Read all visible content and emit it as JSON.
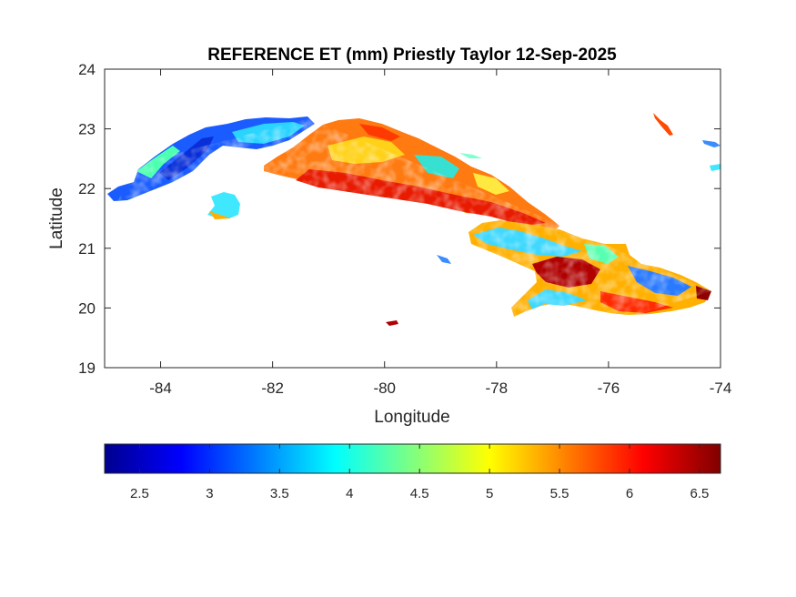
{
  "map": {
    "title": "REFERENCE ET (mm) Priestly Taylor 12-Sep-2025",
    "xlabel": "Longitude",
    "ylabel": "Latitude",
    "xlim": [
      -85,
      -74
    ],
    "ylim": [
      19,
      24
    ],
    "xticks": [
      -84,
      -82,
      -80,
      -78,
      -76,
      -74
    ],
    "yticks": [
      19,
      20,
      21,
      22,
      23,
      24
    ],
    "colormap": "jet",
    "colors": {
      "low": "#00008f",
      "mid": "#00ffff",
      "high": "#800000",
      "axis": "#262626",
      "background": "#ffffff"
    },
    "land_regions": [
      {
        "name": "western-cuba",
        "lon": [
          -84.9,
          -81.2
        ],
        "lat": [
          21.8,
          23.15
        ],
        "et_range": [
          2.8,
          4.2
        ],
        "dominant_value": 3.3
      },
      {
        "name": "isla-de-la-juventud",
        "lon": [
          -83.2,
          -82.55
        ],
        "lat": [
          21.45,
          21.95
        ],
        "et_range": [
          3.8,
          5.5
        ],
        "dominant_value": 4.3
      },
      {
        "name": "central-cuba",
        "lon": [
          -81.9,
          -78.0
        ],
        "lat": [
          21.6,
          23.1
        ],
        "et_range": [
          4.5,
          6.3
        ],
        "dominant_value": 5.6
      },
      {
        "name": "eastern-cuba",
        "lon": [
          -78.0,
          -74.1
        ],
        "lat": [
          19.8,
          22.0
        ],
        "et_range": [
          3.5,
          6.6
        ],
        "dominant_value": 5.4
      }
    ]
  },
  "colorbar": {
    "location": "bottom",
    "range": [
      2.25,
      6.65
    ],
    "ticks": [
      2.5,
      3,
      3.5,
      4,
      4.5,
      5,
      5.5,
      6,
      6.5
    ],
    "tick_labels": [
      "2.5",
      "3",
      "3.5",
      "4",
      "4.5",
      "5",
      "5.5",
      "6",
      "6.5"
    ]
  }
}
